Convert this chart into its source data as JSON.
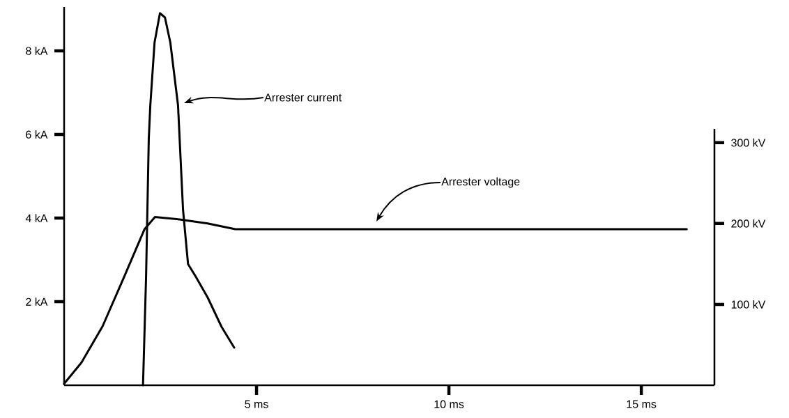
{
  "chart_data": {
    "type": "line",
    "xlim": [
      0,
      16.9
    ],
    "ylim": [
      0,
      9.05
    ],
    "y2lim": [
      0,
      317
    ],
    "xticks": [
      {
        "value": 5,
        "label": "5 ms"
      },
      {
        "value": 10,
        "label": "10 ms"
      },
      {
        "value": 15,
        "label": "15 ms"
      }
    ],
    "yticks": [
      {
        "value": 2,
        "label": "2 kA"
      },
      {
        "value": 4,
        "label": "4 kA"
      },
      {
        "value": 6,
        "label": "6 kA"
      },
      {
        "value": 8,
        "label": "8 kA"
      }
    ],
    "y2ticks": [
      {
        "value": 100,
        "label": "100 kV"
      },
      {
        "value": 200,
        "label": "200 kV"
      },
      {
        "value": 300,
        "label": "300 kV"
      }
    ],
    "series": [
      {
        "color": "#000000",
        "x": [
          2.05,
          2.13,
          2.2,
          2.24,
          2.35,
          2.49,
          2.62,
          2.76,
          2.96,
          3.09,
          3.22,
          3.42,
          3.73,
          4.09,
          4.42
        ],
        "values": [
          0,
          2.6,
          5.9,
          6.7,
          8.2,
          8.9,
          8.8,
          8.2,
          6.7,
          4.2,
          2.9,
          2.6,
          2.1,
          1.4,
          0.9
        ]
      },
      {
        "color": "#000000",
        "axis": "y2",
        "x": [
          0,
          0.45,
          1.0,
          1.55,
          2.09,
          2.36,
          3.0,
          3.73,
          4.45,
          16.18
        ],
        "values": [
          2,
          28,
          73,
          133,
          193,
          208,
          205,
          200,
          193,
          193
        ]
      }
    ],
    "annotations": [
      "Arrester current",
      "Arrester voltage"
    ]
  }
}
